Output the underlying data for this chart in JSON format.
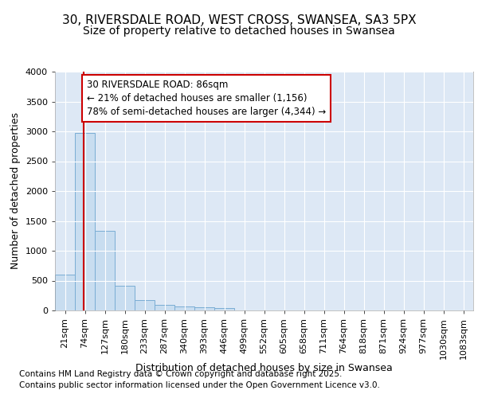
{
  "title_line1": "30, RIVERSDALE ROAD, WEST CROSS, SWANSEA, SA3 5PX",
  "title_line2": "Size of property relative to detached houses in Swansea",
  "xlabel": "Distribution of detached houses by size in Swansea",
  "ylabel": "Number of detached properties",
  "footer_line1": "Contains HM Land Registry data © Crown copyright and database right 2025.",
  "footer_line2": "Contains public sector information licensed under the Open Government Licence v3.0.",
  "bar_labels": [
    "21sqm",
    "74sqm",
    "127sqm",
    "180sqm",
    "233sqm",
    "287sqm",
    "340sqm",
    "393sqm",
    "446sqm",
    "499sqm",
    "552sqm",
    "605sqm",
    "658sqm",
    "711sqm",
    "764sqm",
    "818sqm",
    "871sqm",
    "924sqm",
    "977sqm",
    "1030sqm",
    "1083sqm"
  ],
  "bar_values": [
    600,
    2970,
    1330,
    420,
    170,
    100,
    65,
    50,
    35,
    5,
    0,
    0,
    0,
    0,
    0,
    0,
    0,
    0,
    0,
    0,
    0
  ],
  "bar_color": "#c8ddf0",
  "bar_edge_color": "#7aadd4",
  "background_color": "#ffffff",
  "plot_bg_color": "#dde8f5",
  "grid_color": "#ffffff",
  "red_line_x": 0.95,
  "red_line_color": "#cc0000",
  "annotation_text": "30 RIVERSDALE ROAD: 86sqm\n← 21% of detached houses are smaller (1,156)\n78% of semi-detached houses are larger (4,344) →",
  "annotation_box_facecolor": "#ffffff",
  "annotation_box_edgecolor": "#cc0000",
  "ylim": [
    0,
    4000
  ],
  "yticks": [
    0,
    500,
    1000,
    1500,
    2000,
    2500,
    3000,
    3500,
    4000
  ],
  "title_fontsize": 11,
  "subtitle_fontsize": 10,
  "axis_label_fontsize": 9,
  "tick_fontsize": 8,
  "annotation_fontsize": 8.5,
  "footer_fontsize": 7.5
}
